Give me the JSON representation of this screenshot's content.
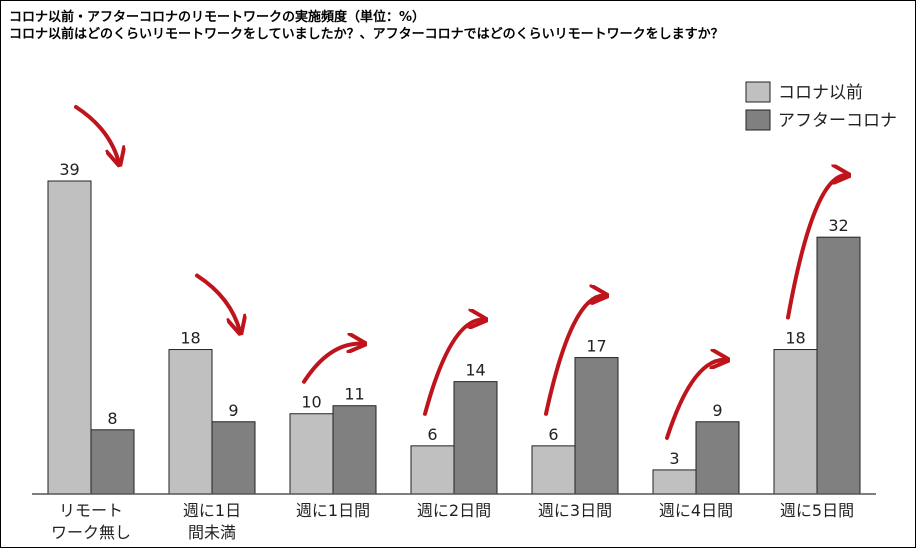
{
  "header": {
    "title_line1": "コロナ以前・アフターコロナのリモートワークの実施頻度（単位：%）",
    "title_line2": "コロナ以前はどのくらいリモートワークをしていましたか？、アフターコロナではどのくらいリモートワークをしますか？"
  },
  "colors": {
    "before": "#c0c0c0",
    "after": "#808080",
    "arrow": "#c0141c"
  },
  "chart_data": {
    "type": "bar",
    "title": "コロナ以前・アフターコロナのリモートワークの実施頻度（単位：%）",
    "categories": [
      [
        "リモート",
        "ワーク無し"
      ],
      [
        "週に1日",
        "間未満"
      ],
      [
        "週に1日間"
      ],
      [
        "週に2日間"
      ],
      [
        "週に3日間"
      ],
      [
        "週に4日間"
      ],
      [
        "週に5日間"
      ]
    ],
    "series": [
      {
        "name": "コロナ以前",
        "values": [
          39,
          18,
          10,
          6,
          6,
          3,
          18
        ]
      },
      {
        "name": "アフターコロナ",
        "values": [
          8,
          9,
          11,
          14,
          17,
          9,
          32
        ]
      }
    ],
    "ylim": [
      0,
      40
    ],
    "grid": false,
    "legend": "top-right",
    "annotations": "red arrows from each before bar toward its after bar (down-right for the first two groups, up-right for the rest)"
  }
}
